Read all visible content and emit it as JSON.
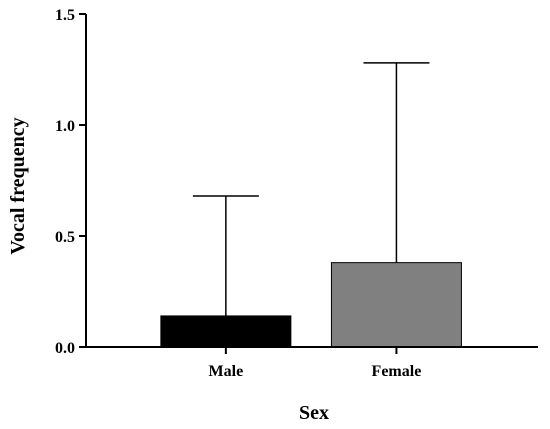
{
  "chart_data": {
    "type": "bar",
    "categories": [
      "Male",
      "Female"
    ],
    "values": [
      0.14,
      0.38
    ],
    "error_upper": [
      0.68,
      1.28
    ],
    "bar_colors": [
      "#000000",
      "#808080"
    ],
    "xlabel": "Sex",
    "ylabel": "Vocal frequency",
    "ylim": [
      0,
      1.5
    ],
    "yticks": [
      "0.0",
      "0.5",
      "1.0",
      "1.5"
    ],
    "grid": false,
    "legend": "none"
  }
}
